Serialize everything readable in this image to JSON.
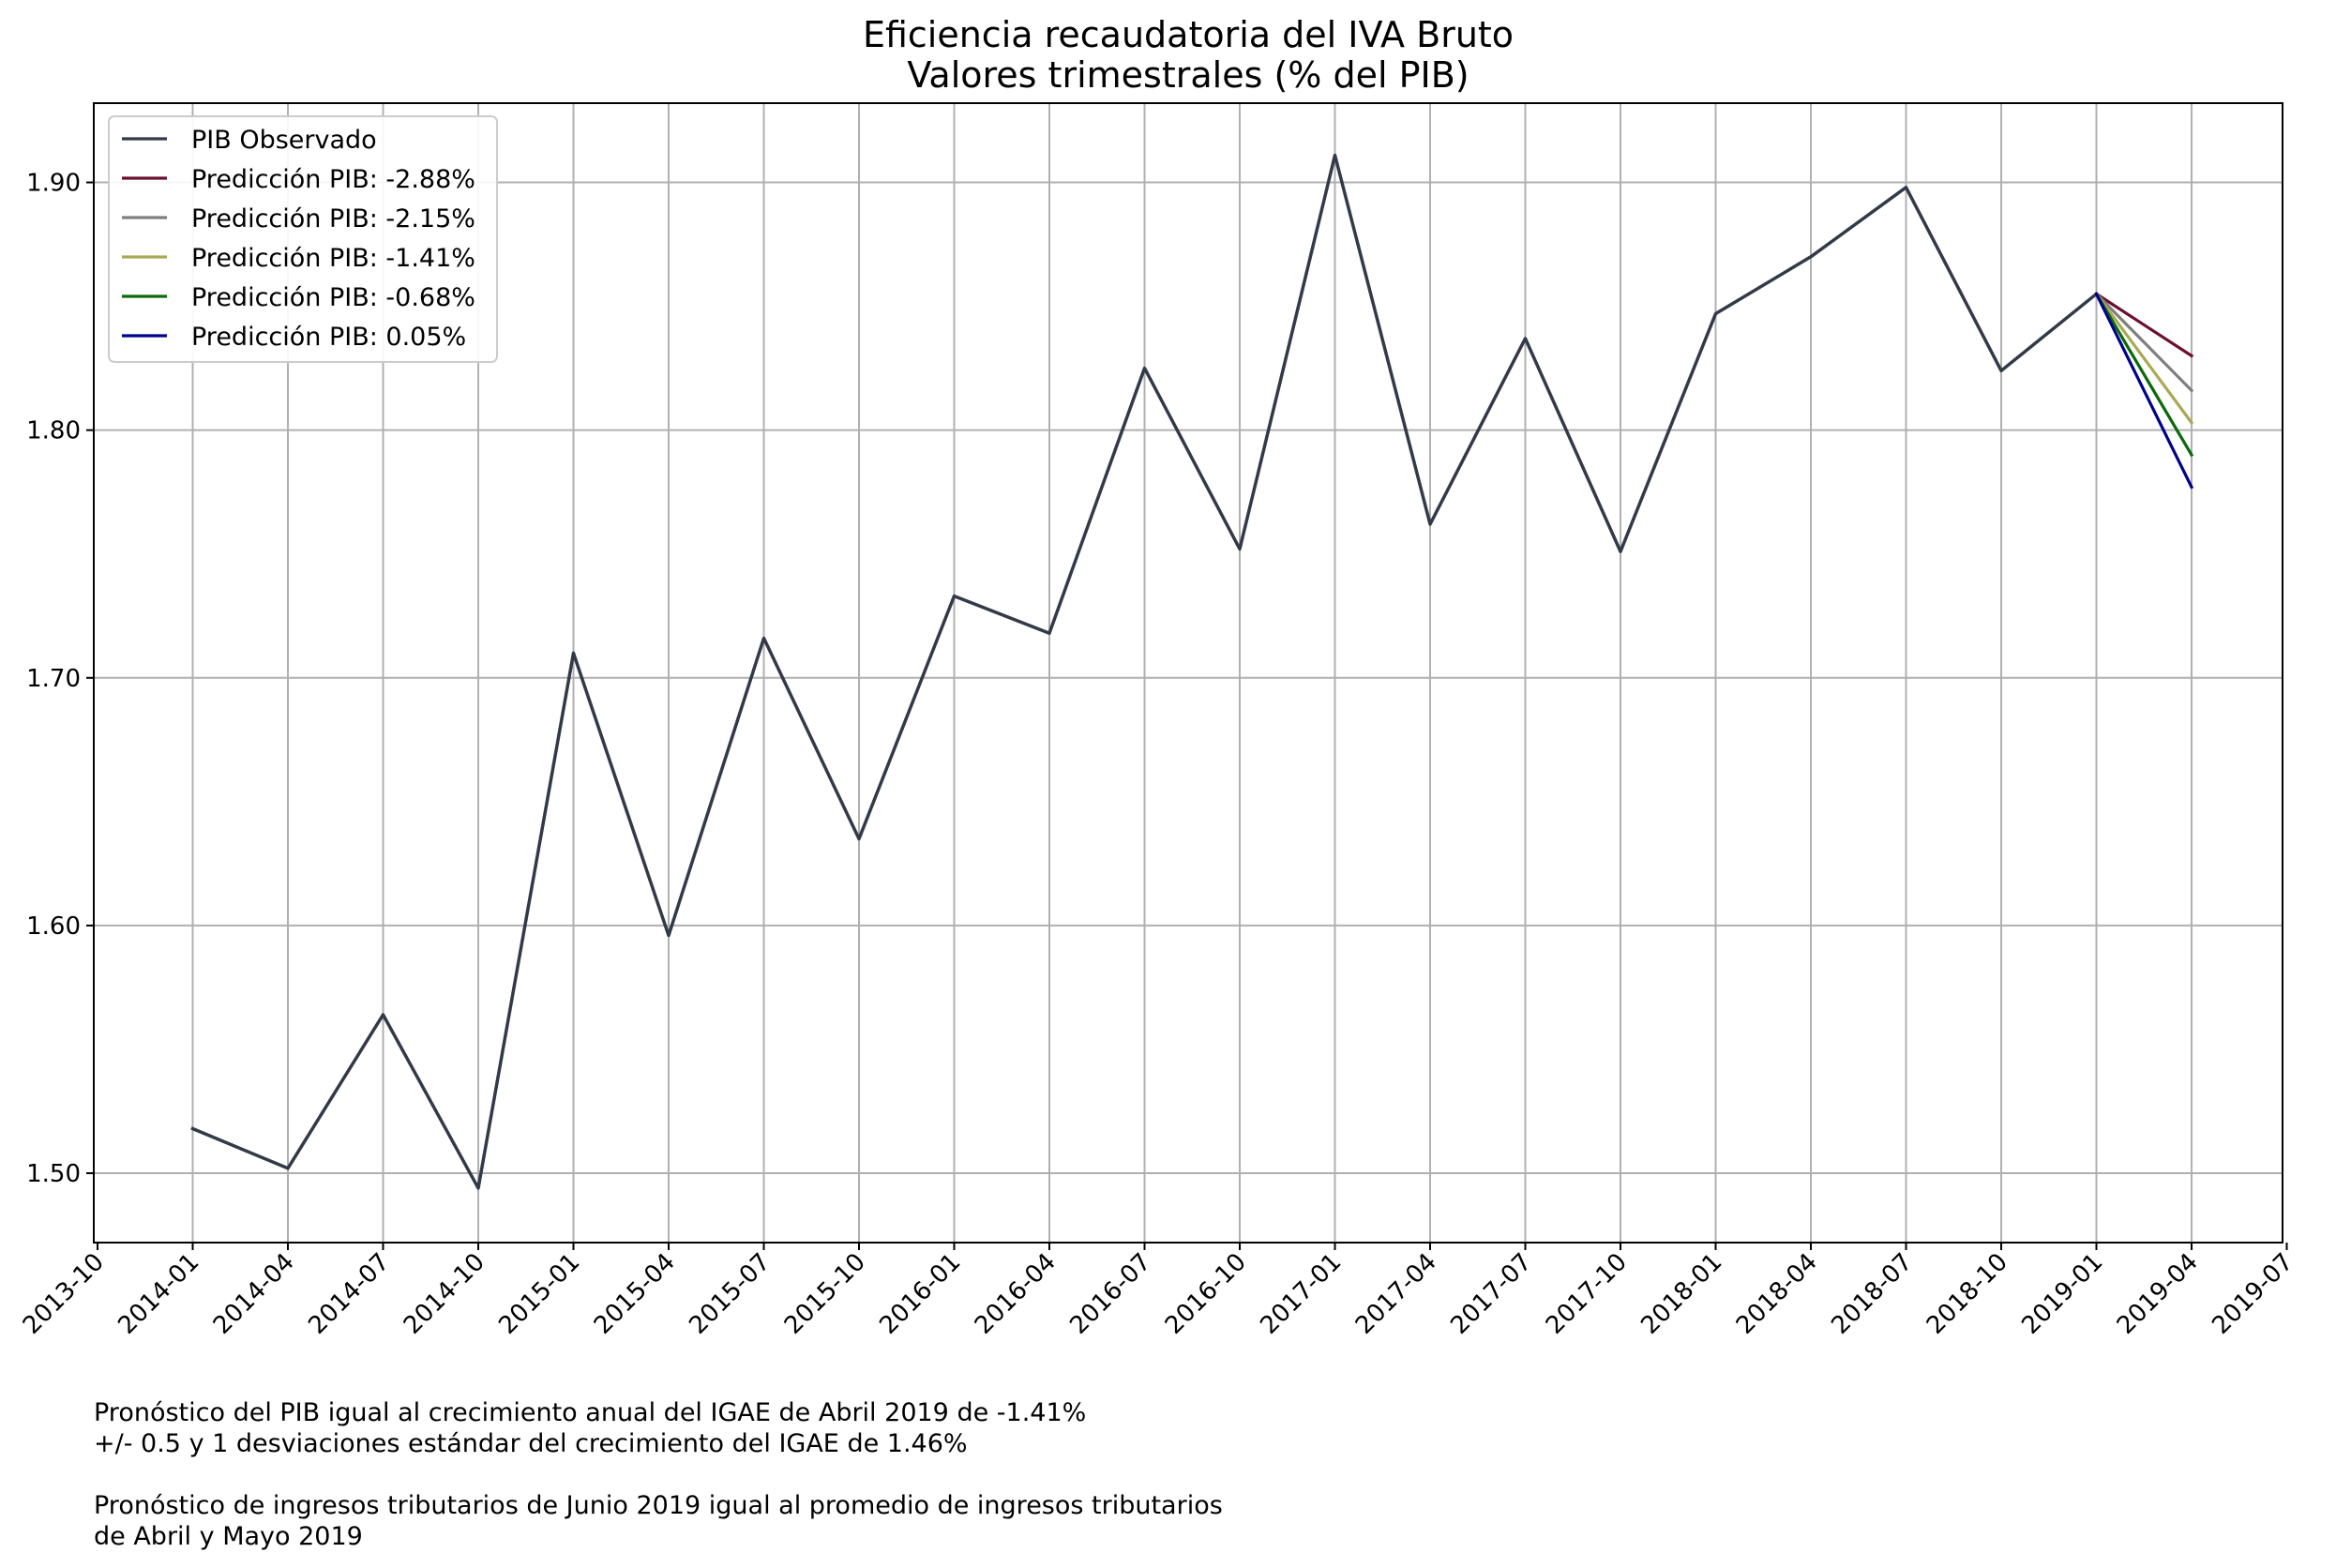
{
  "chart_data": {
    "type": "line",
    "title": "Eficiencia recaudatoria del IVA Bruto",
    "subtitle": "Valores trimestrales (% del PIB)",
    "xlabel": "",
    "ylabel": "",
    "x_ticks": [
      "2013-10",
      "2014-01",
      "2014-04",
      "2014-07",
      "2014-10",
      "2015-01",
      "2015-04",
      "2015-07",
      "2015-10",
      "2016-01",
      "2016-04",
      "2016-07",
      "2016-10",
      "2017-01",
      "2017-04",
      "2017-07",
      "2017-10",
      "2018-01",
      "2018-04",
      "2018-07",
      "2018-10",
      "2019-01",
      "2019-04",
      "2019-07"
    ],
    "y_ticks": [
      "1.50",
      "1.60",
      "1.70",
      "1.80",
      "1.90"
    ],
    "ylim": [
      1.472,
      1.932
    ],
    "grid": true,
    "legend_position": "top-left",
    "series": [
      {
        "name": "PIB Observado",
        "color": "#323a48",
        "x": [
          "2014-01",
          "2014-04",
          "2014-07",
          "2014-10",
          "2015-01",
          "2015-04",
          "2015-07",
          "2015-10",
          "2016-01",
          "2016-04",
          "2016-07",
          "2016-10",
          "2017-01",
          "2017-04",
          "2017-07",
          "2017-10",
          "2018-01",
          "2018-04",
          "2018-07",
          "2018-10",
          "2019-01"
        ],
        "y": [
          1.518,
          1.502,
          1.564,
          1.494,
          1.71,
          1.596,
          1.716,
          1.635,
          1.733,
          1.718,
          1.825,
          1.752,
          1.911,
          1.762,
          1.837,
          1.751,
          1.847,
          1.87,
          1.898,
          1.824,
          1.855
        ]
      },
      {
        "name": "Predicción PIB: -2.88%",
        "color": "#6b1030",
        "x": [
          "2019-01",
          "2019-04"
        ],
        "y": [
          1.855,
          1.83
        ]
      },
      {
        "name": "Predicción PIB: -2.15%",
        "color": "#7f7f7f",
        "x": [
          "2019-01",
          "2019-04"
        ],
        "y": [
          1.855,
          1.816
        ]
      },
      {
        "name": "Predicción PIB: -1.41%",
        "color": "#aaa955",
        "x": [
          "2019-01",
          "2019-04"
        ],
        "y": [
          1.855,
          1.803
        ]
      },
      {
        "name": "Predicción PIB: -0.68%",
        "color": "#0a6a0a",
        "x": [
          "2019-01",
          "2019-04"
        ],
        "y": [
          1.855,
          1.79
        ]
      },
      {
        "name": "Predicción PIB: 0.05%",
        "color": "#00008b",
        "x": [
          "2019-01",
          "2019-04"
        ],
        "y": [
          1.855,
          1.777
        ]
      }
    ]
  },
  "notes": {
    "line1": "Pronóstico del PIB igual al crecimiento anual del IGAE de Abril 2019 de -1.41%",
    "line2": "+/- 0.5 y 1 desviaciones estándar del crecimiento del IGAE de 1.46%",
    "line3": "Pronóstico de ingresos tributarios de Junio 2019 igual al promedio de ingresos tributarios",
    "line4": "de Abril y Mayo 2019"
  }
}
